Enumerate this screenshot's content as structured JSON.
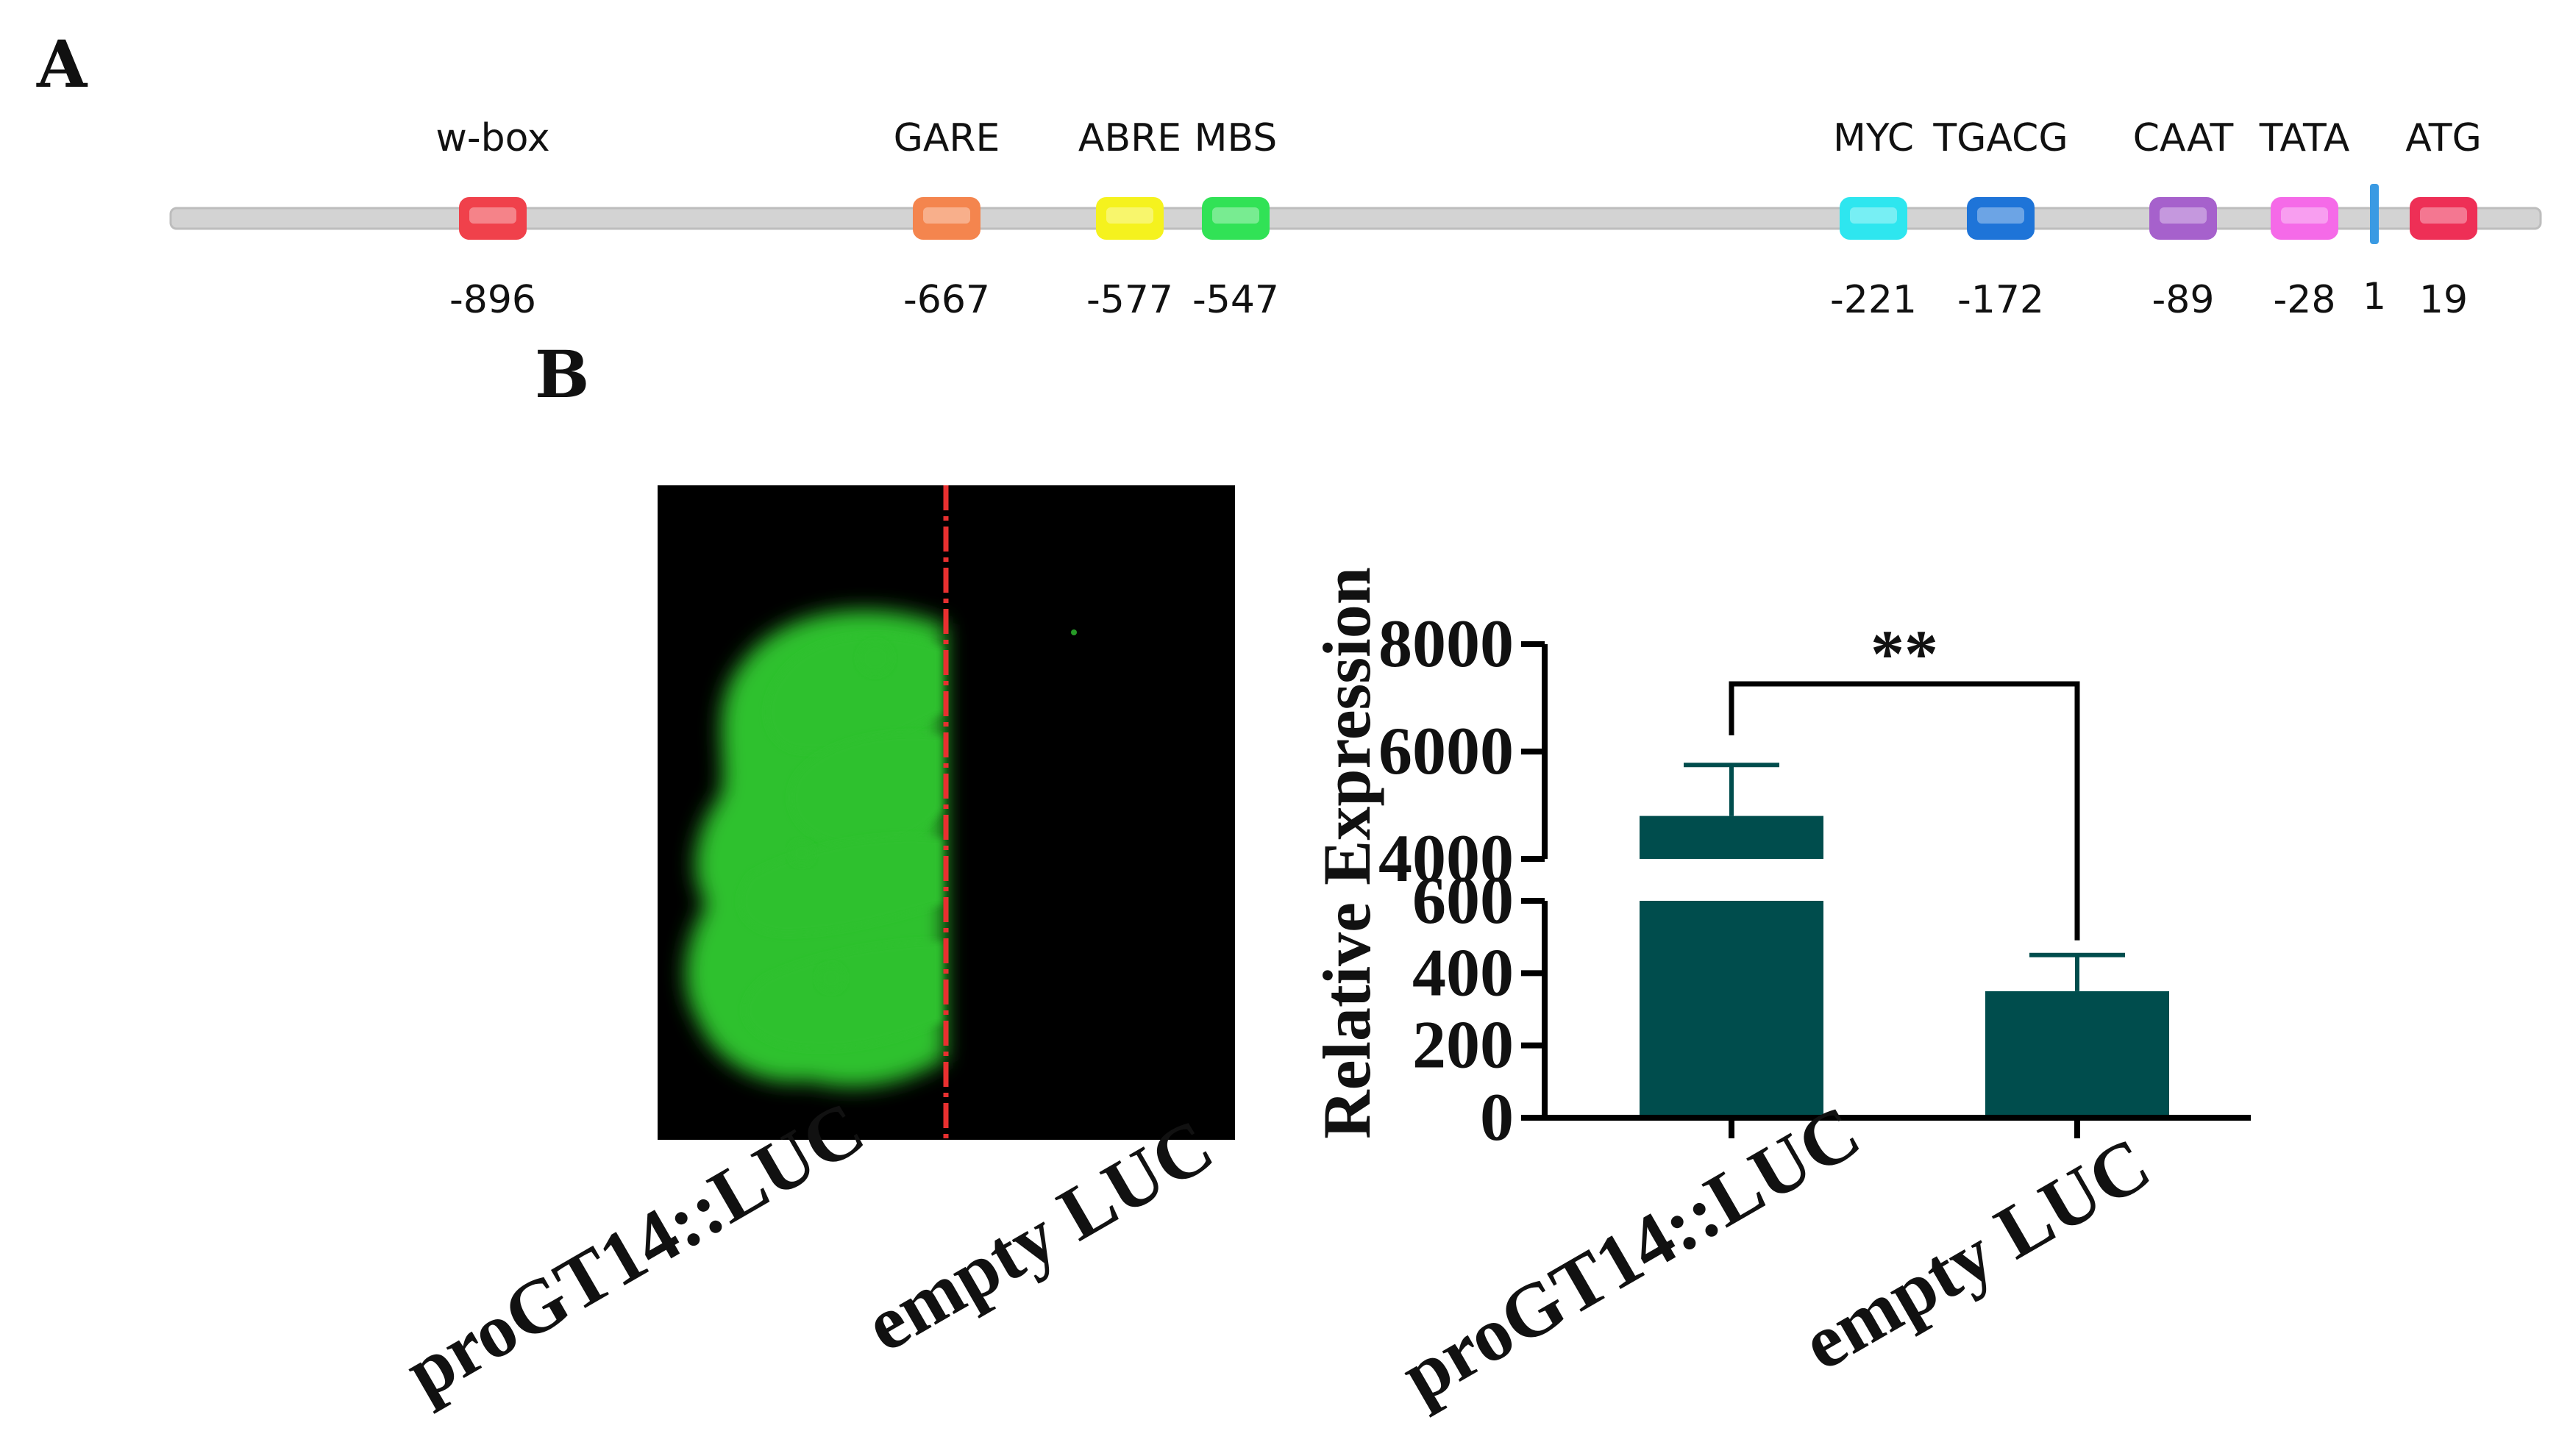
{
  "panel_a": {
    "label": "A",
    "sites": [
      {
        "name": "w-box",
        "position": "-896",
        "color": "#f0414b"
      },
      {
        "name": "GARE",
        "position": "-667",
        "color": "#f4854e"
      },
      {
        "name": "ABRE",
        "position": "-577",
        "color": "#f5f21e"
      },
      {
        "name": "MBS",
        "position": "-547",
        "color": "#31e256"
      },
      {
        "name": "MYC",
        "position": "-221",
        "color": "#2ee6ef"
      },
      {
        "name": "TGACG",
        "position": "-172",
        "color": "#1e74d8"
      },
      {
        "name": "CAAT",
        "position": "-89",
        "color": "#a661cc"
      },
      {
        "name": "TATA",
        "position": "-28",
        "color": "#f56ae8"
      },
      {
        "name": "ATG",
        "position": "19",
        "color": "#ee2f56"
      }
    ],
    "tss": {
      "label": "1",
      "color": "#3a9ae3"
    }
  },
  "panel_b": {
    "label": "B",
    "image_labels": {
      "left": "proGT14::LUC",
      "right": "empty LUC"
    },
    "divider_color": "#e83030",
    "fluorescence_color": "#2fc12f"
  },
  "chart_data": {
    "type": "bar",
    "ylabel": "Relative Expression",
    "categories": [
      "proGT14::LUC",
      "empty LUC"
    ],
    "values": [
      4800,
      350
    ],
    "errors": [
      950,
      100
    ],
    "bar_color": "#004d4d",
    "axis_break": {
      "lower": [
        0,
        600
      ],
      "upper": [
        4000,
        8000
      ]
    },
    "yticks_lower": [
      "0",
      "200",
      "400",
      "600"
    ],
    "yticks_upper": [
      "4000",
      "6000",
      "8000"
    ],
    "significance": "**"
  }
}
